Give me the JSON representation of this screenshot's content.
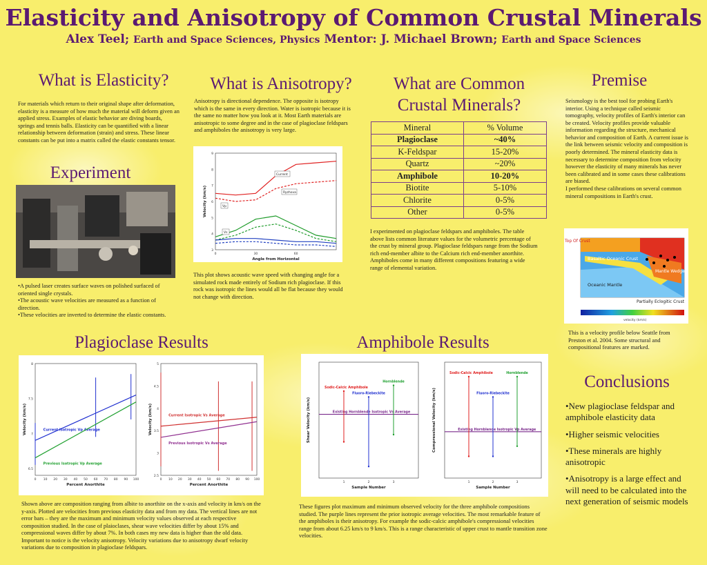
{
  "poster": {
    "title": "Elasticity and Anisotropy of Common Crustal Minerals",
    "author_name": "Alex Teel;",
    "author_dept": "Earth and Space Sciences, Physics",
    "mentor_name": "Mentor: J. Michael Brown;",
    "mentor_dept": "Earth and Space Sciences"
  },
  "elasticity": {
    "heading": "What is Elasticity?",
    "text": "For materials which return to their original shape after deformation, elasticity is a measure of how much the material will deform given an applied stress. Examples of elastic behavior are diving boards, springs and tennis balls. Elasticity can be quantified with a linear relationship between deformation (strain) and stress. These linear constants can be put into a matrix called the elastic constants tensor."
  },
  "experiment": {
    "heading": "Experiment",
    "bullets": [
      "•A pulsed laser creates surface waves on polished surfaced of oriented single crystals.",
      "•The acoustic wave velocities are measured as a function of direction.",
      "•These velocities are inverted to determine the elastic constants."
    ]
  },
  "anisotropy": {
    "heading": "What is Anisotropy?",
    "text": "Anisotropy is directional dependence. The opposite is isotropy which is the same in every direction. Water is isotropic because it is the same no matter how you look at it. Most Earth materials are anisotropic to some degree and in the case of plagioclase feldspars and amphiboles the anisotropy is very large.",
    "caption": "This plot shows acoustic wave speed with changing angle for a simulated rock made entirely of Sodium rich plagioclase. If this rock was isotropic the lines would all be flat because they would not change with direction."
  },
  "minerals": {
    "heading_line1": "What are Common",
    "heading_line2": "Crustal Minerals?",
    "table_headers": [
      "Mineral",
      "% Volume"
    ],
    "rows": [
      {
        "mineral": "Plagioclase",
        "volume": "~40%",
        "bold": true
      },
      {
        "mineral": "K-Feldspar",
        "volume": "15-20%",
        "bold": false
      },
      {
        "mineral": "Quartz",
        "volume": "~20%",
        "bold": false
      },
      {
        "mineral": "Amphibole",
        "volume": "10-20%",
        "bold": true
      },
      {
        "mineral": "Biotite",
        "volume": "5-10%",
        "bold": false
      },
      {
        "mineral": "Chlorite",
        "volume": "0-5%",
        "bold": false
      },
      {
        "mineral": "Other",
        "volume": "0-5%",
        "bold": false
      }
    ],
    "text": "I experimented on plagioclase feldspars and amphiboles. The table above lists common literature values for the volumetric percentage of the crust by mineral group. Plagioclase feldspars range from the Sodium rich end-member albite to the Calcium rich end-member anorthite. Amphiboles come in many different compositions featuring a wide range of elemental variation."
  },
  "premise": {
    "heading": "Premise",
    "text": "Seismology is the best tool for probing Earth's interior. Using a technique called seismic tomography, velocity profiles of Earth's interior can be created. Velocity profiles provide valuable information regarding the structure, mechanical behavior and composition of Earth. A current issue is the link between seismic velocity and composition is poorly determined. The mineral elasticity data is necessary to determine composition from velocity however the elasticity of many minerals has never been calibrated and in some cases these calibrations are biased.",
    "text2": "I performed these calibrations on several common mineral compositions in Earth's crust.",
    "profile_labels": {
      "top_of_crust": "Top Of Crust",
      "basaltic": "Basaltic Oceanic Crust",
      "mantle_wedge": "Mantle Wedge?",
      "oceanic_mantle": "Oceanic Mantle",
      "eclogitic": "Partially Eclogitic Crust",
      "colorbar_label": "velocity (km/s)"
    },
    "caption": "This is a velocity profile below Seattle from Preston et al. 2004. Some structural and compositional features are marked."
  },
  "plagioclase": {
    "heading": "Plagioclase Results",
    "caption": "Shown above are composition ranging from albite to anorthite on the x-axis and velocity in km/s on the y-axis. Plotted are velocities from previous elasticity data and from my data. The vertical lines are not error bars – they are the maximum and minimum velocity values observed at each respective composition studied. In the case of plaioclases, shear wave velocities differ by about 15% and compressional waves differ by about 7%. In both cases my new data is higher than the old data. Important to notice is the velocity anisotropy. Velocity variations due to anisotropy dwarf velocity variations due to composition in plagioclase feldspars."
  },
  "amphibole": {
    "heading": "Amphibole Results",
    "caption": "These figures plot maximum and minimum observed velocity for the three amphibole compositions studied. The purple lines represent the prior isotropic average velocities. The most remarkable feature of the amphiboles is their anisotropy. For example the sodic-calcic amphibole's compressional velocities range from about 6.25 km/s to 9 km/s. This is a range characteristic of upper crust to mantle transition zone velocities."
  },
  "conclusions": {
    "heading": "Conclusions",
    "bullets": [
      "•New plagioclase feldspar and amphibole elasticity data",
      "•Higher seismic velocities",
      "•These minerals are highly anisotropic",
      "•Anisotropy is a large effect and will need to be calculated into the next generation of seismic models"
    ]
  },
  "chart_data": [
    {
      "type": "line",
      "xlabel": "Angle from Horizontal",
      "ylabel": "Velocity (km/s)",
      "xlim": [
        0,
        90
      ],
      "ylim": [
        3,
        9
      ],
      "x_ticks": [
        "0",
        "30",
        "60"
      ],
      "y_ticks": [
        "3",
        "4",
        "5",
        "6",
        "7",
        "8",
        "9"
      ],
      "annotations": [
        "Current",
        "Ryzhova",
        "Vp",
        "Vs"
      ],
      "series": [
        {
          "name": "Current",
          "group": "Vp",
          "color": "#e02020",
          "dash": false,
          "x": [
            0,
            15,
            30,
            45,
            60,
            75,
            90
          ],
          "y": [
            6.5,
            6.4,
            6.5,
            7.6,
            8.3,
            8.4,
            8.5
          ]
        },
        {
          "name": "Ryzhova",
          "group": "Vp",
          "color": "#e02020",
          "dash": true,
          "x": [
            0,
            15,
            30,
            45,
            60,
            75,
            90
          ],
          "y": [
            6.2,
            6.0,
            6.1,
            6.8,
            7.1,
            7.2,
            7.3
          ]
        },
        {
          "name": "Current",
          "group": "Vs",
          "color": "#1e9b2a",
          "dash": false,
          "x": [
            0,
            15,
            30,
            45,
            60,
            75,
            90
          ],
          "y": [
            3.8,
            4.2,
            4.9,
            5.1,
            4.5,
            3.9,
            3.7
          ]
        },
        {
          "name": "Ryzhova",
          "group": "Vs",
          "color": "#1e9b2a",
          "dash": true,
          "x": [
            0,
            15,
            30,
            45,
            60,
            75,
            90
          ],
          "y": [
            3.6,
            3.9,
            4.4,
            4.6,
            4.2,
            3.7,
            3.5
          ]
        },
        {
          "name": "Current",
          "group": "Vs2",
          "color": "#2040c0",
          "dash": false,
          "x": [
            0,
            15,
            30,
            45,
            60,
            75,
            90
          ],
          "y": [
            3.6,
            3.7,
            3.7,
            3.6,
            3.5,
            3.5,
            3.4
          ]
        },
        {
          "name": "Ryzhova",
          "group": "Vs2",
          "color": "#2040c0",
          "dash": true,
          "x": [
            0,
            15,
            30,
            45,
            60,
            75,
            90
          ],
          "y": [
            3.4,
            3.5,
            3.5,
            3.4,
            3.3,
            3.3,
            3.2
          ]
        }
      ]
    },
    {
      "type": "line",
      "xlabel": "Percent Anorthite",
      "ylabel": "Velocity (km/s)",
      "xlim": [
        0,
        100
      ],
      "ylim": [
        6.4,
        8.0
      ],
      "y_ticks": [
        "6.5",
        "7",
        "7.5",
        "8"
      ],
      "x_ticks": [
        "0",
        "10",
        "20",
        "30",
        "40",
        "50",
        "60",
        "70",
        "80",
        "90",
        "100"
      ],
      "series": [
        {
          "name": "Current Isotropic Vp Average",
          "color": "#2030d0",
          "x": [
            0,
            100
          ],
          "y": [
            6.9,
            7.55
          ]
        },
        {
          "name": "Previous Isotropic Vp Average",
          "color": "#20a030",
          "x": [
            0,
            100
          ],
          "y": [
            6.65,
            7.45
          ]
        }
      ],
      "ranges": [
        {
          "x": 0,
          "min": 6.55,
          "max": 7.15,
          "color": "#2030d0"
        },
        {
          "x": 60,
          "min": 6.95,
          "max": 7.8,
          "color": "#2030d0"
        },
        {
          "x": 95,
          "min": 7.2,
          "max": 7.85,
          "color": "#2030d0"
        }
      ]
    },
    {
      "type": "line",
      "xlabel": "Percent Anorthite",
      "ylabel": "Velocity (km/s)",
      "xlim": [
        0,
        100
      ],
      "ylim": [
        2.5,
        5.0
      ],
      "y_ticks": [
        "2.5",
        "3",
        "3.5",
        "4",
        "4.5",
        "5"
      ],
      "x_ticks": [
        "0",
        "10",
        "20",
        "30",
        "40",
        "50",
        "60",
        "70",
        "80",
        "90",
        "100"
      ],
      "series": [
        {
          "name": "Current Isotropic Vs Average",
          "color": "#d03030",
          "x": [
            0,
            100
          ],
          "y": [
            3.6,
            3.8
          ]
        },
        {
          "name": "Previous Isotropic Vs Average",
          "color": "#903090",
          "x": [
            0,
            100
          ],
          "y": [
            3.35,
            3.7
          ]
        }
      ],
      "ranges": [
        {
          "x": 0,
          "min": 2.7,
          "max": 4.8,
          "color": "#d03030"
        },
        {
          "x": 60,
          "min": 2.6,
          "max": 4.6,
          "color": "#d03030"
        },
        {
          "x": 95,
          "min": 2.6,
          "max": 4.6,
          "color": "#d03030"
        }
      ]
    },
    {
      "type": "scatter",
      "xlabel": "Sample Number",
      "ylabel": "Shear Velocity (km/s)",
      "xlim": [
        0,
        4
      ],
      "ylim": [
        2,
        6
      ],
      "x_ticks": [
        "1",
        "2",
        "3"
      ],
      "average_label": "Existing Hornblende Isotropic Vs Average",
      "average": 4.2,
      "series": [
        {
          "name": "Sodic-Calcic Amphibole",
          "color": "#e02020",
          "x": 1,
          "min": 3.25,
          "max": 5.0
        },
        {
          "name": "Fluoro-Riebeckite",
          "color": "#2030d0",
          "x": 2,
          "min": 2.4,
          "max": 4.8
        },
        {
          "name": "Hornblende",
          "color": "#20a030",
          "x": 3,
          "min": 3.5,
          "max": 5.2
        }
      ]
    },
    {
      "type": "scatter",
      "xlabel": "Sample Number",
      "ylabel": "Compressional Velocity (km/s)",
      "xlim": [
        0,
        4
      ],
      "ylim": [
        5.5,
        9.5
      ],
      "x_ticks": [
        "1",
        "2",
        "3"
      ],
      "average_label": "Existing Hornblende Isotropic Vp Average",
      "average": 7.1,
      "series": [
        {
          "name": "Sodic-Calcic Amphibole",
          "color": "#e02020",
          "x": 1,
          "min": 6.25,
          "max": 9.0
        },
        {
          "name": "Fluoro-Riebeckite",
          "color": "#2030d0",
          "x": 2,
          "min": 6.25,
          "max": 8.3
        },
        {
          "name": "Hornblende",
          "color": "#20a030",
          "x": 3,
          "min": 6.6,
          "max": 9.0
        }
      ]
    }
  ]
}
